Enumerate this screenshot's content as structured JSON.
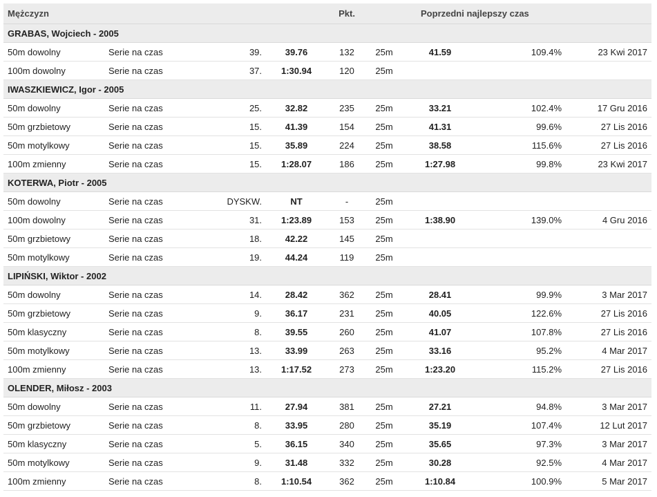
{
  "header": {
    "category": "Mężczyzn",
    "points": "Pkt.",
    "previous_best": "Poprzedni najlepszy czas"
  },
  "swimmers": [
    {
      "name": "GRABAS, Wojciech - 2005",
      "results": [
        {
          "event": "50m dowolny",
          "round": "Serie na czas",
          "place": "39.",
          "time": "39.76",
          "points": "132",
          "course": "25m",
          "pb": "41.59",
          "pct": "109.4%",
          "date": "23 Kwi 2017"
        },
        {
          "event": "100m dowolny",
          "round": "Serie na czas",
          "place": "37.",
          "time": "1:30.94",
          "points": "120",
          "course": "25m",
          "pb": "",
          "pct": "",
          "date": ""
        }
      ]
    },
    {
      "name": "IWASZKIEWICZ, Igor - 2005",
      "results": [
        {
          "event": "50m dowolny",
          "round": "Serie na czas",
          "place": "25.",
          "time": "32.82",
          "points": "235",
          "course": "25m",
          "pb": "33.21",
          "pct": "102.4%",
          "date": "17 Gru 2016"
        },
        {
          "event": "50m grzbietowy",
          "round": "Serie na czas",
          "place": "15.",
          "time": "41.39",
          "points": "154",
          "course": "25m",
          "pb": "41.31",
          "pct": "99.6%",
          "date": "27 Lis 2016"
        },
        {
          "event": "50m motylkowy",
          "round": "Serie na czas",
          "place": "15.",
          "time": "35.89",
          "points": "224",
          "course": "25m",
          "pb": "38.58",
          "pct": "115.6%",
          "date": "27 Lis 2016"
        },
        {
          "event": "100m zmienny",
          "round": "Serie na czas",
          "place": "15.",
          "time": "1:28.07",
          "points": "186",
          "course": "25m",
          "pb": "1:27.98",
          "pct": "99.8%",
          "date": "23 Kwi 2017"
        }
      ]
    },
    {
      "name": "KOTERWA, Piotr - 2005",
      "results": [
        {
          "event": "50m dowolny",
          "round": "Serie na czas",
          "place": "DYSKW.",
          "time": "NT",
          "points": "-",
          "course": "25m",
          "pb": "",
          "pct": "",
          "date": ""
        },
        {
          "event": "100m dowolny",
          "round": "Serie na czas",
          "place": "31.",
          "time": "1:23.89",
          "points": "153",
          "course": "25m",
          "pb": "1:38.90",
          "pct": "139.0%",
          "date": "4 Gru 2016"
        },
        {
          "event": "50m grzbietowy",
          "round": "Serie na czas",
          "place": "18.",
          "time": "42.22",
          "points": "145",
          "course": "25m",
          "pb": "",
          "pct": "",
          "date": ""
        },
        {
          "event": "50m motylkowy",
          "round": "Serie na czas",
          "place": "19.",
          "time": "44.24",
          "points": "119",
          "course": "25m",
          "pb": "",
          "pct": "",
          "date": ""
        }
      ]
    },
    {
      "name": "LIPIŃSKI, Wiktor - 2002",
      "results": [
        {
          "event": "50m dowolny",
          "round": "Serie na czas",
          "place": "14.",
          "time": "28.42",
          "points": "362",
          "course": "25m",
          "pb": "28.41",
          "pct": "99.9%",
          "date": "3 Mar 2017"
        },
        {
          "event": "50m grzbietowy",
          "round": "Serie na czas",
          "place": "9.",
          "time": "36.17",
          "points": "231",
          "course": "25m",
          "pb": "40.05",
          "pct": "122.6%",
          "date": "27 Lis 2016"
        },
        {
          "event": "50m klasyczny",
          "round": "Serie na czas",
          "place": "8.",
          "time": "39.55",
          "points": "260",
          "course": "25m",
          "pb": "41.07",
          "pct": "107.8%",
          "date": "27 Lis 2016"
        },
        {
          "event": "50m motylkowy",
          "round": "Serie na czas",
          "place": "13.",
          "time": "33.99",
          "points": "263",
          "course": "25m",
          "pb": "33.16",
          "pct": "95.2%",
          "date": "4 Mar 2017"
        },
        {
          "event": "100m zmienny",
          "round": "Serie na czas",
          "place": "13.",
          "time": "1:17.52",
          "points": "273",
          "course": "25m",
          "pb": "1:23.20",
          "pct": "115.2%",
          "date": "27 Lis 2016"
        }
      ]
    },
    {
      "name": "OLENDER, Miłosz - 2003",
      "results": [
        {
          "event": "50m dowolny",
          "round": "Serie na czas",
          "place": "11.",
          "time": "27.94",
          "points": "381",
          "course": "25m",
          "pb": "27.21",
          "pct": "94.8%",
          "date": "3 Mar 2017"
        },
        {
          "event": "50m grzbietowy",
          "round": "Serie na czas",
          "place": "8.",
          "time": "33.95",
          "points": "280",
          "course": "25m",
          "pb": "35.19",
          "pct": "107.4%",
          "date": "12 Lut 2017"
        },
        {
          "event": "50m klasyczny",
          "round": "Serie na czas",
          "place": "5.",
          "time": "36.15",
          "points": "340",
          "course": "25m",
          "pb": "35.65",
          "pct": "97.3%",
          "date": "3 Mar 2017"
        },
        {
          "event": "50m motylkowy",
          "round": "Serie na czas",
          "place": "9.",
          "time": "31.48",
          "points": "332",
          "course": "25m",
          "pb": "30.28",
          "pct": "92.5%",
          "date": "4 Mar 2017"
        },
        {
          "event": "100m zmienny",
          "round": "Serie na czas",
          "place": "8.",
          "time": "1:10.54",
          "points": "362",
          "course": "25m",
          "pb": "1:10.84",
          "pct": "100.9%",
          "date": "5 Mar 2017"
        }
      ]
    }
  ]
}
